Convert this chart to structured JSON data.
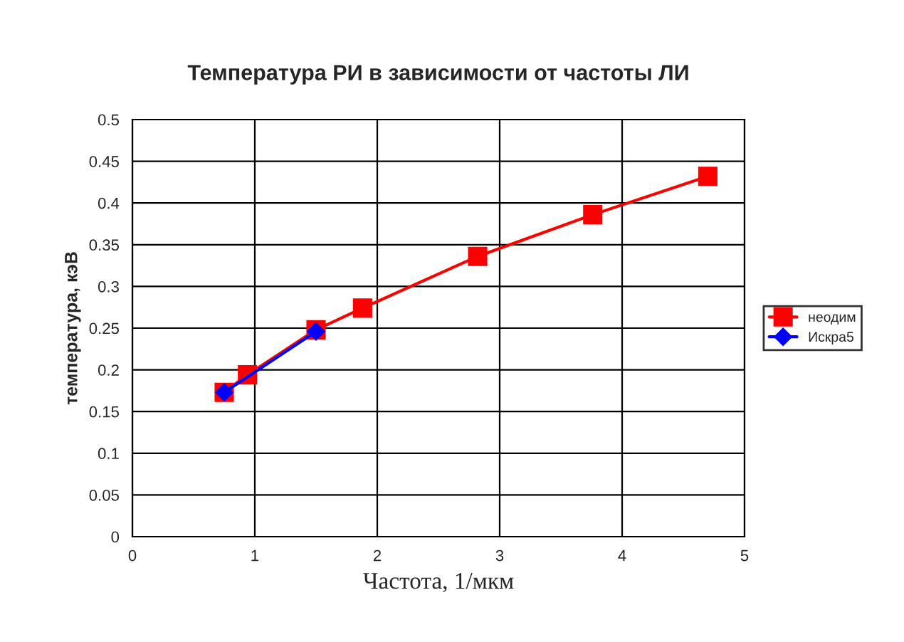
{
  "chart_data": {
    "type": "line",
    "title": "Температура РИ в зависимости от частоты ЛИ",
    "xlabel": "Частота, 1/мкм",
    "ylabel": "температура, кэВ",
    "xlim": [
      0,
      5
    ],
    "xticks": [
      0,
      1,
      2,
      3,
      4,
      5
    ],
    "ylim": [
      0,
      0.5
    ],
    "yticks": [
      0,
      0.05,
      0.1,
      0.15,
      0.2,
      0.25,
      0.3,
      0.35,
      0.4,
      0.45,
      0.5
    ],
    "grid": true,
    "legend": "right",
    "series": [
      {
        "name": "неодим",
        "color": "#ff0000",
        "marker": "square",
        "x": [
          0.75,
          0.94,
          1.5,
          1.88,
          2.82,
          3.76,
          4.7
        ],
        "values": [
          0.173,
          0.194,
          0.248,
          0.274,
          0.336,
          0.386,
          0.432
        ]
      },
      {
        "name": "Искра5",
        "color": "#0000ff",
        "marker": "diamond",
        "x": [
          0.75,
          1.5
        ],
        "values": [
          0.173,
          0.246
        ]
      }
    ]
  }
}
